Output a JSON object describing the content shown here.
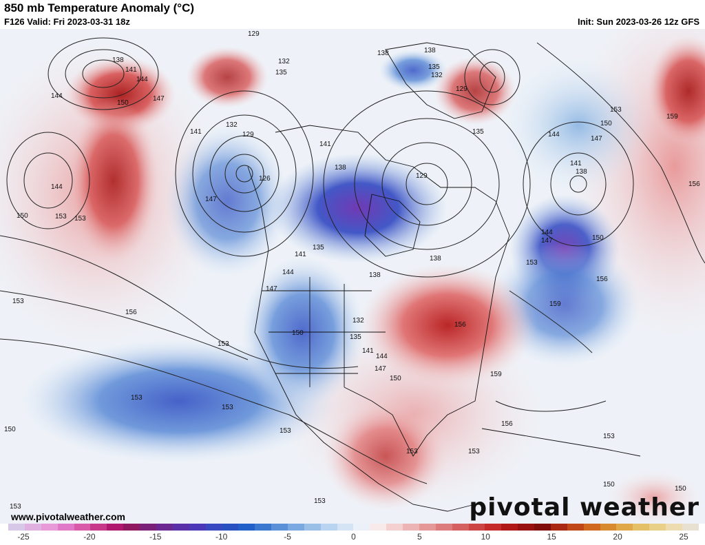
{
  "header": {
    "title": "850 mb Temperature Anomaly (°C)",
    "valid": "F126 Valid: Fri 2023-03-31 18z",
    "init": "Init: Sun 2023-03-26 12z GFS"
  },
  "watermark": {
    "url": "www.pivotalweather.com",
    "brand": "pivotal weather"
  },
  "colorbar": {
    "ticks": [
      "-25",
      "-20",
      "-15",
      "-10",
      "-5",
      "0",
      "5",
      "10",
      "15",
      "20",
      "25"
    ],
    "colors": [
      "#d8c8e8",
      "#e0b0e0",
      "#e89ad8",
      "#e07ac8",
      "#d85aa8",
      "#c8388a",
      "#b01870",
      "#901860",
      "#7a2078",
      "#6a2890",
      "#5a30a8",
      "#4a38b8",
      "#3848c0",
      "#2850c0",
      "#2060c8",
      "#3a78d0",
      "#5a90d8",
      "#7aa8e0",
      "#9ac0e8",
      "#b8d4f0",
      "#d4e4f4",
      "#ecf0f8",
      "#f8eaea",
      "#f4d0d0",
      "#ecb4b4",
      "#e49898",
      "#dc7c7c",
      "#d46060",
      "#cc4444",
      "#c42a2a",
      "#b01818",
      "#981010",
      "#800c0c",
      "#a82814",
      "#c04818",
      "#d06820",
      "#d88a30",
      "#e0a848",
      "#e4c068",
      "#e8d088",
      "#ecdcb0",
      "#e8e0d0"
    ]
  },
  "contour_labels": [
    "129",
    "138",
    "141",
    "144",
    "147",
    "150",
    "153",
    "156",
    "159",
    "132",
    "135"
  ],
  "map_labels": [
    {
      "text": "129"
    },
    {
      "text": "138"
    },
    {
      "text": "141"
    },
    {
      "text": "144"
    },
    {
      "text": "147"
    },
    {
      "text": "150"
    },
    {
      "text": "153"
    },
    {
      "text": "132"
    },
    {
      "text": "135"
    },
    {
      "text": "138"
    },
    {
      "text": "135"
    },
    {
      "text": "129"
    },
    {
      "text": "138"
    },
    {
      "text": "135"
    },
    {
      "text": "132"
    },
    {
      "text": "129"
    },
    {
      "text": "153"
    },
    {
      "text": "159"
    },
    {
      "text": "150"
    },
    {
      "text": "144"
    },
    {
      "text": "147"
    },
    {
      "text": "141"
    },
    {
      "text": "138"
    },
    {
      "text": "156"
    },
    {
      "text": "144"
    },
    {
      "text": "147"
    },
    {
      "text": "150"
    },
    {
      "text": "153"
    },
    {
      "text": "156"
    },
    {
      "text": "159"
    },
    {
      "text": "144"
    },
    {
      "text": "150"
    },
    {
      "text": "153"
    },
    {
      "text": "153"
    },
    {
      "text": "153"
    },
    {
      "text": "156"
    },
    {
      "text": "153"
    },
    {
      "text": "150"
    },
    {
      "text": "153"
    },
    {
      "text": "153"
    },
    {
      "text": "153"
    },
    {
      "text": "150"
    },
    {
      "text": "150"
    },
    {
      "text": "153"
    },
    {
      "text": "138"
    },
    {
      "text": "141"
    },
    {
      "text": "144"
    },
    {
      "text": "147"
    },
    {
      "text": "150"
    },
    {
      "text": "153"
    },
    {
      "text": "156"
    },
    {
      "text": "132"
    },
    {
      "text": "135"
    },
    {
      "text": "141"
    },
    {
      "text": "144"
    },
    {
      "text": "147"
    },
    {
      "text": "150"
    },
    {
      "text": "153"
    },
    {
      "text": "156"
    },
    {
      "text": "159"
    },
    {
      "text": "141"
    },
    {
      "text": "138"
    },
    {
      "text": "135"
    },
    {
      "text": "132"
    },
    {
      "text": "129"
    },
    {
      "text": "126"
    },
    {
      "text": "138"
    },
    {
      "text": "141"
    },
    {
      "text": "144"
    },
    {
      "text": "147"
    },
    {
      "text": "153"
    }
  ]
}
